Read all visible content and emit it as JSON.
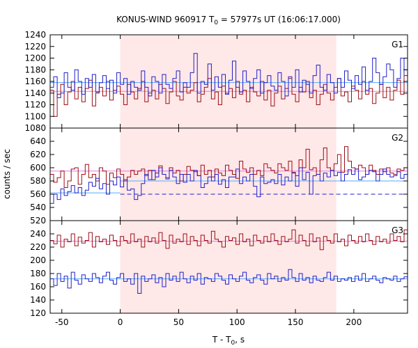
{
  "chart_data": {
    "type": "line",
    "title": {
      "prefix": "KONUS-WIND 960917 T",
      "sub": "0",
      "suffix": " = 57977s UT (16:06:17.000)"
    },
    "xlabel": {
      "prefix": "T - T",
      "sub": "0",
      "suffix": ", s"
    },
    "ylabel": "counts / sec",
    "xlim": [
      -60,
      246
    ],
    "x_ticks": [
      -50,
      0,
      50,
      100,
      150,
      200
    ],
    "bin_width": 3,
    "highlight_interval": [
      0,
      185
    ],
    "colors": {
      "signal": "#9b0d14",
      "background": "#1f1fc8",
      "signal_fit": "#e07ce0",
      "background_fit": "#55aaff",
      "highlight": "#ffe8e8"
    },
    "panels": [
      {
        "name": "G1",
        "ylim": [
          1080,
          1240
        ],
        "y_ticks": [
          1080,
          1100,
          1120,
          1140,
          1160,
          1180,
          1200,
          1220,
          1240
        ],
        "series": [
          {
            "x0": -60,
            "values": [
              1145,
              1100,
              1138,
              1155,
              1120,
              1142,
              1160,
              1130,
              1150,
              1125,
              1148,
              1162,
              1118,
              1140,
              1150,
              1135,
              1160,
              1128,
              1145,
              1152,
              1138,
              1120,
              1155,
              1142,
              1130,
              1148,
              1160,
              1125,
              1140,
              1145,
              1130,
              1155,
              1148,
              1122,
              1142,
              1160,
              1135,
              1128,
              1150,
              1140,
              1145,
              1158,
              1125,
              1138,
              1150,
              1165,
              1130,
              1142,
              1120,
              1152,
              1140,
              1148,
              1132,
              1160,
              1138,
              1145,
              1125,
              1150,
              1142,
              1135,
              1160,
              1128,
              1145,
              1118,
              1140,
              1152,
              1130,
              1148,
              1165,
              1138,
              1125,
              1150,
              1142,
              1160,
              1132,
              1145,
              1120,
              1138,
              1155,
              1140,
              1128,
              1150,
              1165,
              1135,
              1142,
              1125,
              1152,
              1145,
              1130,
              1160,
              1138,
              1148,
              1122,
              1140,
              1155,
              1132,
              1150,
              1128,
              1145,
              1162,
              1138,
              1180
            ]
          },
          {
            "x0": -60,
            "values": [
              1150,
              1168,
              1132,
              1140,
              1175,
              1150,
              1145,
              1180,
              1160,
              1138,
              1165,
              1150,
              1172,
              1142,
              1158,
              1170,
              1148,
              1162,
              1140,
              1175,
              1155,
              1165,
              1138,
              1160,
              1150,
              1145,
              1178,
              1150,
              1135,
              1168,
              1160,
              1140,
              1172,
              1155,
              1148,
              1165,
              1178,
              1142,
              1158,
              1150,
              1175,
              1208,
              1140,
              1160,
              1155,
              1190,
              1145,
              1168,
              1150,
              1172,
              1138,
              1162,
              1195,
              1150,
              1142,
              1178,
              1160,
              1148,
              1165,
              1180,
              1140,
              1158,
              1170,
              1152,
              1145,
              1175,
              1160,
              1135,
              1168,
              1150,
              1180,
              1142,
              1162,
              1155,
              1140,
              1170,
              1188,
              1150,
              1145,
              1172,
              1158,
              1140,
              1165,
              1150,
              1178,
              1162,
              1148,
              1170,
              1155,
              1185,
              1145,
              1160,
              1200,
              1175,
              1155,
              1168,
              1190,
              1180,
              1150,
              1165,
              1200,
              1170
            ]
          }
        ],
        "fits": [
          {
            "from": -60,
            "to": 246,
            "value": 1143
          },
          {
            "from": -60,
            "to": 246,
            "value": 1158
          }
        ]
      },
      {
        "name": "G2",
        "ylim": [
          520,
          660
        ],
        "y_ticks": [
          520,
          540,
          560,
          580,
          600,
          620,
          640
        ],
        "series": [
          {
            "x0": -60,
            "values": [
              590,
              578,
              585,
              595,
              570,
              580,
              598,
              600,
              575,
              590,
              605,
              585,
              590,
              580,
              600,
              595,
              575,
              592,
              585,
              598,
              590,
              580,
              586,
              596,
              590,
              595,
              598,
              588,
              596,
              582,
              592,
              603,
              590,
              585,
              600,
              592,
              596,
              580,
              590,
              602,
              596,
              594,
              588,
              604,
              590,
              596,
              586,
              598,
              592,
              588,
              604,
              596,
              590,
              584,
              610,
              598,
              593,
              600,
              590,
              596,
              588,
              606,
              600,
              596,
              592,
              606,
              600,
              596,
              610,
              593,
              588,
              612,
              600,
              628,
              597,
              600,
              590,
              612,
              630,
              600,
              596,
              606,
              620,
              593,
              632,
              610,
              600,
              598,
              604,
              600,
              590,
              604,
              596,
              590,
              598,
              594,
              600,
              592,
              590,
              598,
              596,
              600
            ]
          },
          {
            "x0": -60,
            "values": [
              546,
              560,
              552,
              568,
              558,
              564,
              573,
              562,
              570,
              558,
              566,
              578,
              572,
              584,
              568,
              576,
              560,
              580,
              574,
              586,
              571,
              582,
              566,
              568,
              552,
              558,
              576,
              590,
              582,
              596,
              586,
              600,
              590,
              583,
              596,
              586,
              576,
              590,
              578,
              590,
              580,
              596,
              588,
              570,
              576,
              586,
              580,
              590,
              575,
              582,
              570,
              586,
              586,
              598,
              576,
              586,
              580,
              590,
              572,
              556,
              586,
              576,
              578,
              582,
              576,
              590,
              574,
              586,
              580,
              592,
              572,
              600,
              582,
              593,
              560,
              588,
              590,
              580,
              592,
              586,
              596,
              588,
              593,
              580,
              590,
              597,
              590,
              598,
              582,
              586,
              590,
              596,
              594,
              580,
              590,
              598,
              590,
              586,
              588,
              594,
              584,
              590
            ]
          }
        ],
        "fits": [
          {
            "from": -60,
            "to": 246,
            "value": 595
          },
          {
            "from": -60,
            "to": 0,
            "value": 562
          },
          {
            "from": 0,
            "to": 246,
            "value": 580
          }
        ],
        "baseline": {
          "from": 0,
          "to": 246,
          "value": 560
        }
      },
      {
        "name": "G3",
        "ylim": [
          120,
          260
        ],
        "y_ticks": [
          120,
          140,
          160,
          180,
          200,
          220,
          240
        ],
        "series": [
          {
            "x0": -60,
            "values": [
              230,
              225,
              238,
              220,
              232,
              228,
              240,
              222,
              235,
              226,
              230,
              242,
              220,
              236,
              228,
              232,
              224,
              238,
              230,
              222,
              236,
              230,
              226,
              240,
              228,
              232,
              220,
              236,
              228,
              234,
              226,
              242,
              230,
              218,
              238,
              226,
              232,
              228,
              240,
              224,
              236,
              230,
              222,
              238,
              230,
              226,
              244,
              232,
              228,
              220,
              236,
              230,
              234,
              224,
              240,
              228,
              232,
              222,
              238,
              230,
              226,
              236,
              228,
              240,
              230,
              224,
              236,
              228,
              232,
              246,
              226,
              238,
              230,
              222,
              240,
              228,
              234,
              216,
              236,
              230,
              226,
              240,
              228,
              232,
              222,
              238,
              230,
              226,
              236,
              228,
              240,
              230,
              224,
              236,
              228,
              232,
              226,
              240,
              230,
              236,
              228,
              246
            ]
          },
          {
            "x0": -60,
            "values": [
              172,
              162,
              180,
              168,
              176,
              158,
              182,
              170,
              164,
              178,
              172,
              168,
              180,
              174,
              166,
              176,
              182,
              170,
              164,
              174,
              180,
              168,
              172,
              164,
              180,
              150,
              176,
              168,
              172,
              178,
              166,
              174,
              160,
              180,
              170,
              176,
              168,
              182,
              172,
              166,
              176,
              170,
              180,
              164,
              174,
              172,
              168,
              180,
              176,
              170,
              164,
              178,
              172,
              168,
              176,
              182,
              170,
              166,
              174,
              178,
              170,
              164,
              180,
              172,
              176,
              168,
              174,
              170,
              186,
              174,
              168,
              180,
              170,
              174,
              166,
              176,
              170,
              168,
              174,
              182,
              170,
              176,
              168,
              172,
              170,
              174,
              168,
              176,
              170,
              180,
              168,
              172,
              176,
              170,
              166,
              174,
              172,
              170,
              176,
              168,
              172,
              175
            ]
          }
        ],
        "fits": [
          {
            "from": -60,
            "to": 246,
            "value": 229
          },
          {
            "from": -60,
            "to": 246,
            "value": 172
          }
        ]
      }
    ]
  }
}
